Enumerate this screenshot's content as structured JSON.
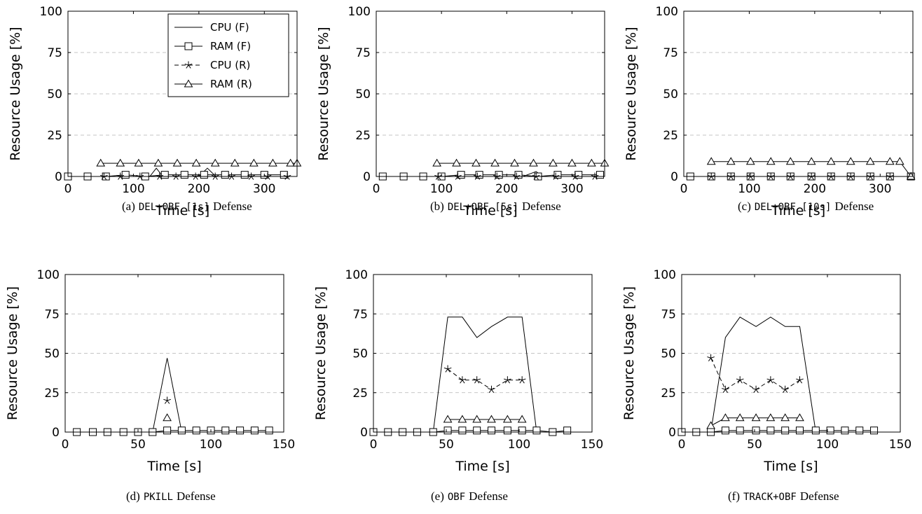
{
  "y_axis_label": "Resource Usage [%]",
  "x_axis_label": "Time [s]",
  "legend": [
    "CPU (F)",
    "RAM (F)",
    "CPU (R)",
    "RAM (R)"
  ],
  "chart_data": [
    {
      "type": "line",
      "caption": {
        "tag": "(a)",
        "code": "DEL+OBF [1s]",
        "rest": "Defense"
      },
      "xlabel": "Time [s]",
      "ylabel": "Resource Usage [%]",
      "xlim": [
        0,
        350
      ],
      "ylim": [
        0,
        100
      ],
      "xticks": [
        0,
        100,
        200,
        300
      ],
      "yticks": [
        0,
        25,
        50,
        75,
        100
      ],
      "grid": "horizontal-dashed",
      "legend_position": "top-right",
      "series": [
        {
          "name": "CPU (F)",
          "x": [
            0,
            125,
            135,
            145,
            200,
            213,
            226,
            350
          ],
          "y": [
            0,
            0,
            5,
            0,
            0,
            5,
            0,
            0
          ]
        },
        {
          "name": "RAM (F)",
          "x": [
            0,
            30,
            58,
            88,
            118,
            148,
            178,
            208,
            240,
            270,
            300,
            330
          ],
          "y": [
            0,
            0,
            0,
            1,
            0,
            1,
            1,
            1,
            1,
            1,
            1,
            1
          ]
        },
        {
          "name": "CPU (R)",
          "x": [
            55,
            80,
            110,
            140,
            165,
            195,
            225,
            250,
            280,
            305,
            335
          ],
          "y": [
            0,
            0,
            0,
            0,
            0,
            0,
            0,
            0,
            0,
            0,
            0
          ]
        },
        {
          "name": "RAM (R)",
          "x": [
            50,
            80,
            108,
            138,
            167,
            196,
            225,
            255,
            284,
            313,
            340,
            350
          ],
          "y": [
            8,
            8,
            8,
            8,
            8,
            8,
            8,
            8,
            8,
            8,
            8,
            8
          ]
        }
      ]
    },
    {
      "type": "line",
      "caption": {
        "tag": "(b)",
        "code": "DEL+OBF [5s]",
        "rest": "Defense"
      },
      "xlabel": "Time [s]",
      "ylabel": "Resource Usage [%]",
      "xlim": [
        0,
        350
      ],
      "ylim": [
        0,
        100
      ],
      "xticks": [
        0,
        100,
        200,
        300
      ],
      "yticks": [
        0,
        25,
        50,
        75,
        100
      ],
      "grid": "horizontal-dashed",
      "series": [
        {
          "name": "CPU (F)",
          "x": [
            0,
            225,
            245,
            255,
            350
          ],
          "y": [
            0,
            0,
            3,
            0,
            0
          ]
        },
        {
          "name": "RAM (F)",
          "x": [
            10,
            42,
            72,
            100,
            130,
            158,
            188,
            218,
            248,
            278,
            310,
            343
          ],
          "y": [
            0,
            0,
            0,
            0,
            1,
            1,
            1,
            1,
            0,
            1,
            1,
            1
          ]
        },
        {
          "name": "CPU (R)",
          "x": [
            95,
            125,
            155,
            185,
            215,
            245,
            275,
            305,
            335
          ],
          "y": [
            0,
            0,
            0,
            0,
            0,
            0,
            0,
            0,
            0
          ]
        },
        {
          "name": "RAM (R)",
          "x": [
            93,
            123,
            153,
            182,
            212,
            241,
            271,
            300,
            330,
            350
          ],
          "y": [
            8,
            8,
            8,
            8,
            8,
            8,
            8,
            8,
            8,
            8
          ]
        }
      ]
    },
    {
      "type": "line",
      "caption": {
        "tag": "(c)",
        "code": "DEL+OBF [10s]",
        "rest": "Defense"
      },
      "xlabel": "Time [s]",
      "ylabel": "Resource Usage [%]",
      "xlim": [
        0,
        350
      ],
      "ylim": [
        0,
        100
      ],
      "xticks": [
        0,
        100,
        200,
        300
      ],
      "yticks": [
        0,
        25,
        50,
        75,
        100
      ],
      "grid": "horizontal-dashed",
      "series": [
        {
          "name": "CPU (F)",
          "x": [
            0,
            350
          ],
          "y": [
            0,
            0
          ]
        },
        {
          "name": "RAM (F)",
          "x": [
            10,
            42,
            72,
            102,
            133,
            163,
            195,
            225,
            255,
            285,
            315,
            347
          ],
          "y": [
            0,
            0,
            0,
            0,
            0,
            0,
            0,
            0,
            0,
            0,
            0,
            0
          ]
        },
        {
          "name": "CPU (R)",
          "x": [
            42,
            72,
            102,
            133,
            163,
            195,
            225,
            255,
            285,
            315
          ],
          "y": [
            0,
            0,
            0,
            0,
            0,
            0,
            0,
            0,
            0,
            0
          ]
        },
        {
          "name": "RAM (R)",
          "x": [
            42,
            72,
            102,
            133,
            163,
            195,
            225,
            255,
            285,
            315,
            330,
            347
          ],
          "y": [
            9,
            9,
            9,
            9,
            9,
            9,
            9,
            9,
            9,
            9,
            9,
            0
          ]
        }
      ]
    },
    {
      "type": "line",
      "caption": {
        "tag": "(d)",
        "code": "PKILL",
        "rest": "Defense"
      },
      "xlabel": "Time [s]",
      "ylabel": "Resource Usage [%]",
      "xlim": [
        0,
        150
      ],
      "ylim": [
        0,
        100
      ],
      "xticks": [
        0,
        50,
        100,
        150
      ],
      "yticks": [
        0,
        25,
        50,
        75,
        100
      ],
      "grid": "horizontal-dashed",
      "series": [
        {
          "name": "CPU (F)",
          "x": [
            8,
            60,
            70,
            80,
            140
          ],
          "y": [
            0,
            0,
            47,
            0,
            0
          ]
        },
        {
          "name": "RAM (F)",
          "x": [
            8,
            19,
            29,
            40,
            50,
            60,
            70,
            80,
            90,
            100,
            110,
            120,
            130,
            140
          ],
          "y": [
            0,
            0,
            0,
            0,
            0,
            0,
            1,
            1,
            1,
            1,
            1,
            1,
            1,
            1
          ]
        },
        {
          "name": "CPU (R)",
          "x": [
            70
          ],
          "y": [
            20
          ]
        },
        {
          "name": "RAM (R)",
          "x": [
            70
          ],
          "y": [
            9
          ]
        }
      ]
    },
    {
      "type": "line",
      "caption": {
        "tag": "(e)",
        "code": "OBF",
        "rest": "Defense"
      },
      "xlabel": "Time [s]",
      "ylabel": "Resource Usage [%]",
      "xlim": [
        0,
        150
      ],
      "ylim": [
        0,
        100
      ],
      "xticks": [
        0,
        50,
        100,
        150
      ],
      "yticks": [
        0,
        25,
        50,
        75,
        100
      ],
      "grid": "horizontal-dashed",
      "series": [
        {
          "name": "CPU (F)",
          "x": [
            0,
            41,
            51,
            61,
            71,
            81,
            92,
            102,
            112,
            123,
            133
          ],
          "y": [
            0,
            0,
            73,
            73,
            60,
            67,
            73,
            73,
            0,
            0,
            0
          ]
        },
        {
          "name": "RAM (F)",
          "x": [
            0,
            10,
            20,
            30,
            41,
            51,
            61,
            71,
            81,
            92,
            102,
            112,
            123,
            133
          ],
          "y": [
            0,
            0,
            0,
            0,
            0,
            1,
            1,
            1,
            1,
            1,
            1,
            1,
            0,
            1
          ]
        },
        {
          "name": "CPU (R)",
          "x": [
            51,
            61,
            71,
            81,
            92,
            102
          ],
          "y": [
            40,
            33,
            33,
            27,
            33,
            33
          ]
        },
        {
          "name": "RAM (R)",
          "x": [
            51,
            61,
            71,
            81,
            92,
            102
          ],
          "y": [
            8,
            8,
            8,
            8,
            8,
            8
          ]
        }
      ]
    },
    {
      "type": "line",
      "caption": {
        "tag": "(f)",
        "code": "TRACK+OBF",
        "rest": "Defense"
      },
      "xlabel": "Time [s]",
      "ylabel": "Resource Usage [%]",
      "xlim": [
        0,
        150
      ],
      "ylim": [
        0,
        100
      ],
      "xticks": [
        0,
        50,
        100,
        150
      ],
      "yticks": [
        0,
        25,
        50,
        75,
        100
      ],
      "grid": "horizontal-dashed",
      "series": [
        {
          "name": "CPU (F)",
          "x": [
            0,
            20,
            30,
            40,
            51,
            61,
            71,
            81,
            92,
            102,
            112,
            122,
            132
          ],
          "y": [
            0,
            0,
            60,
            73,
            67,
            73,
            67,
            67,
            0,
            0,
            0,
            0,
            0
          ]
        },
        {
          "name": "RAM (F)",
          "x": [
            0,
            10,
            20,
            30,
            40,
            51,
            61,
            71,
            81,
            92,
            102,
            112,
            122,
            132
          ],
          "y": [
            0,
            0,
            0,
            1,
            1,
            1,
            1,
            1,
            1,
            1,
            1,
            1,
            1,
            1
          ]
        },
        {
          "name": "CPU (R)",
          "x": [
            20,
            30,
            40,
            51,
            61,
            71,
            81
          ],
          "y": [
            47,
            27,
            33,
            27,
            33,
            27,
            33
          ]
        },
        {
          "name": "RAM (R)",
          "x": [
            20,
            30,
            40,
            51,
            61,
            71,
            81
          ],
          "y": [
            4,
            9,
            9,
            9,
            9,
            9,
            9
          ]
        }
      ]
    }
  ]
}
